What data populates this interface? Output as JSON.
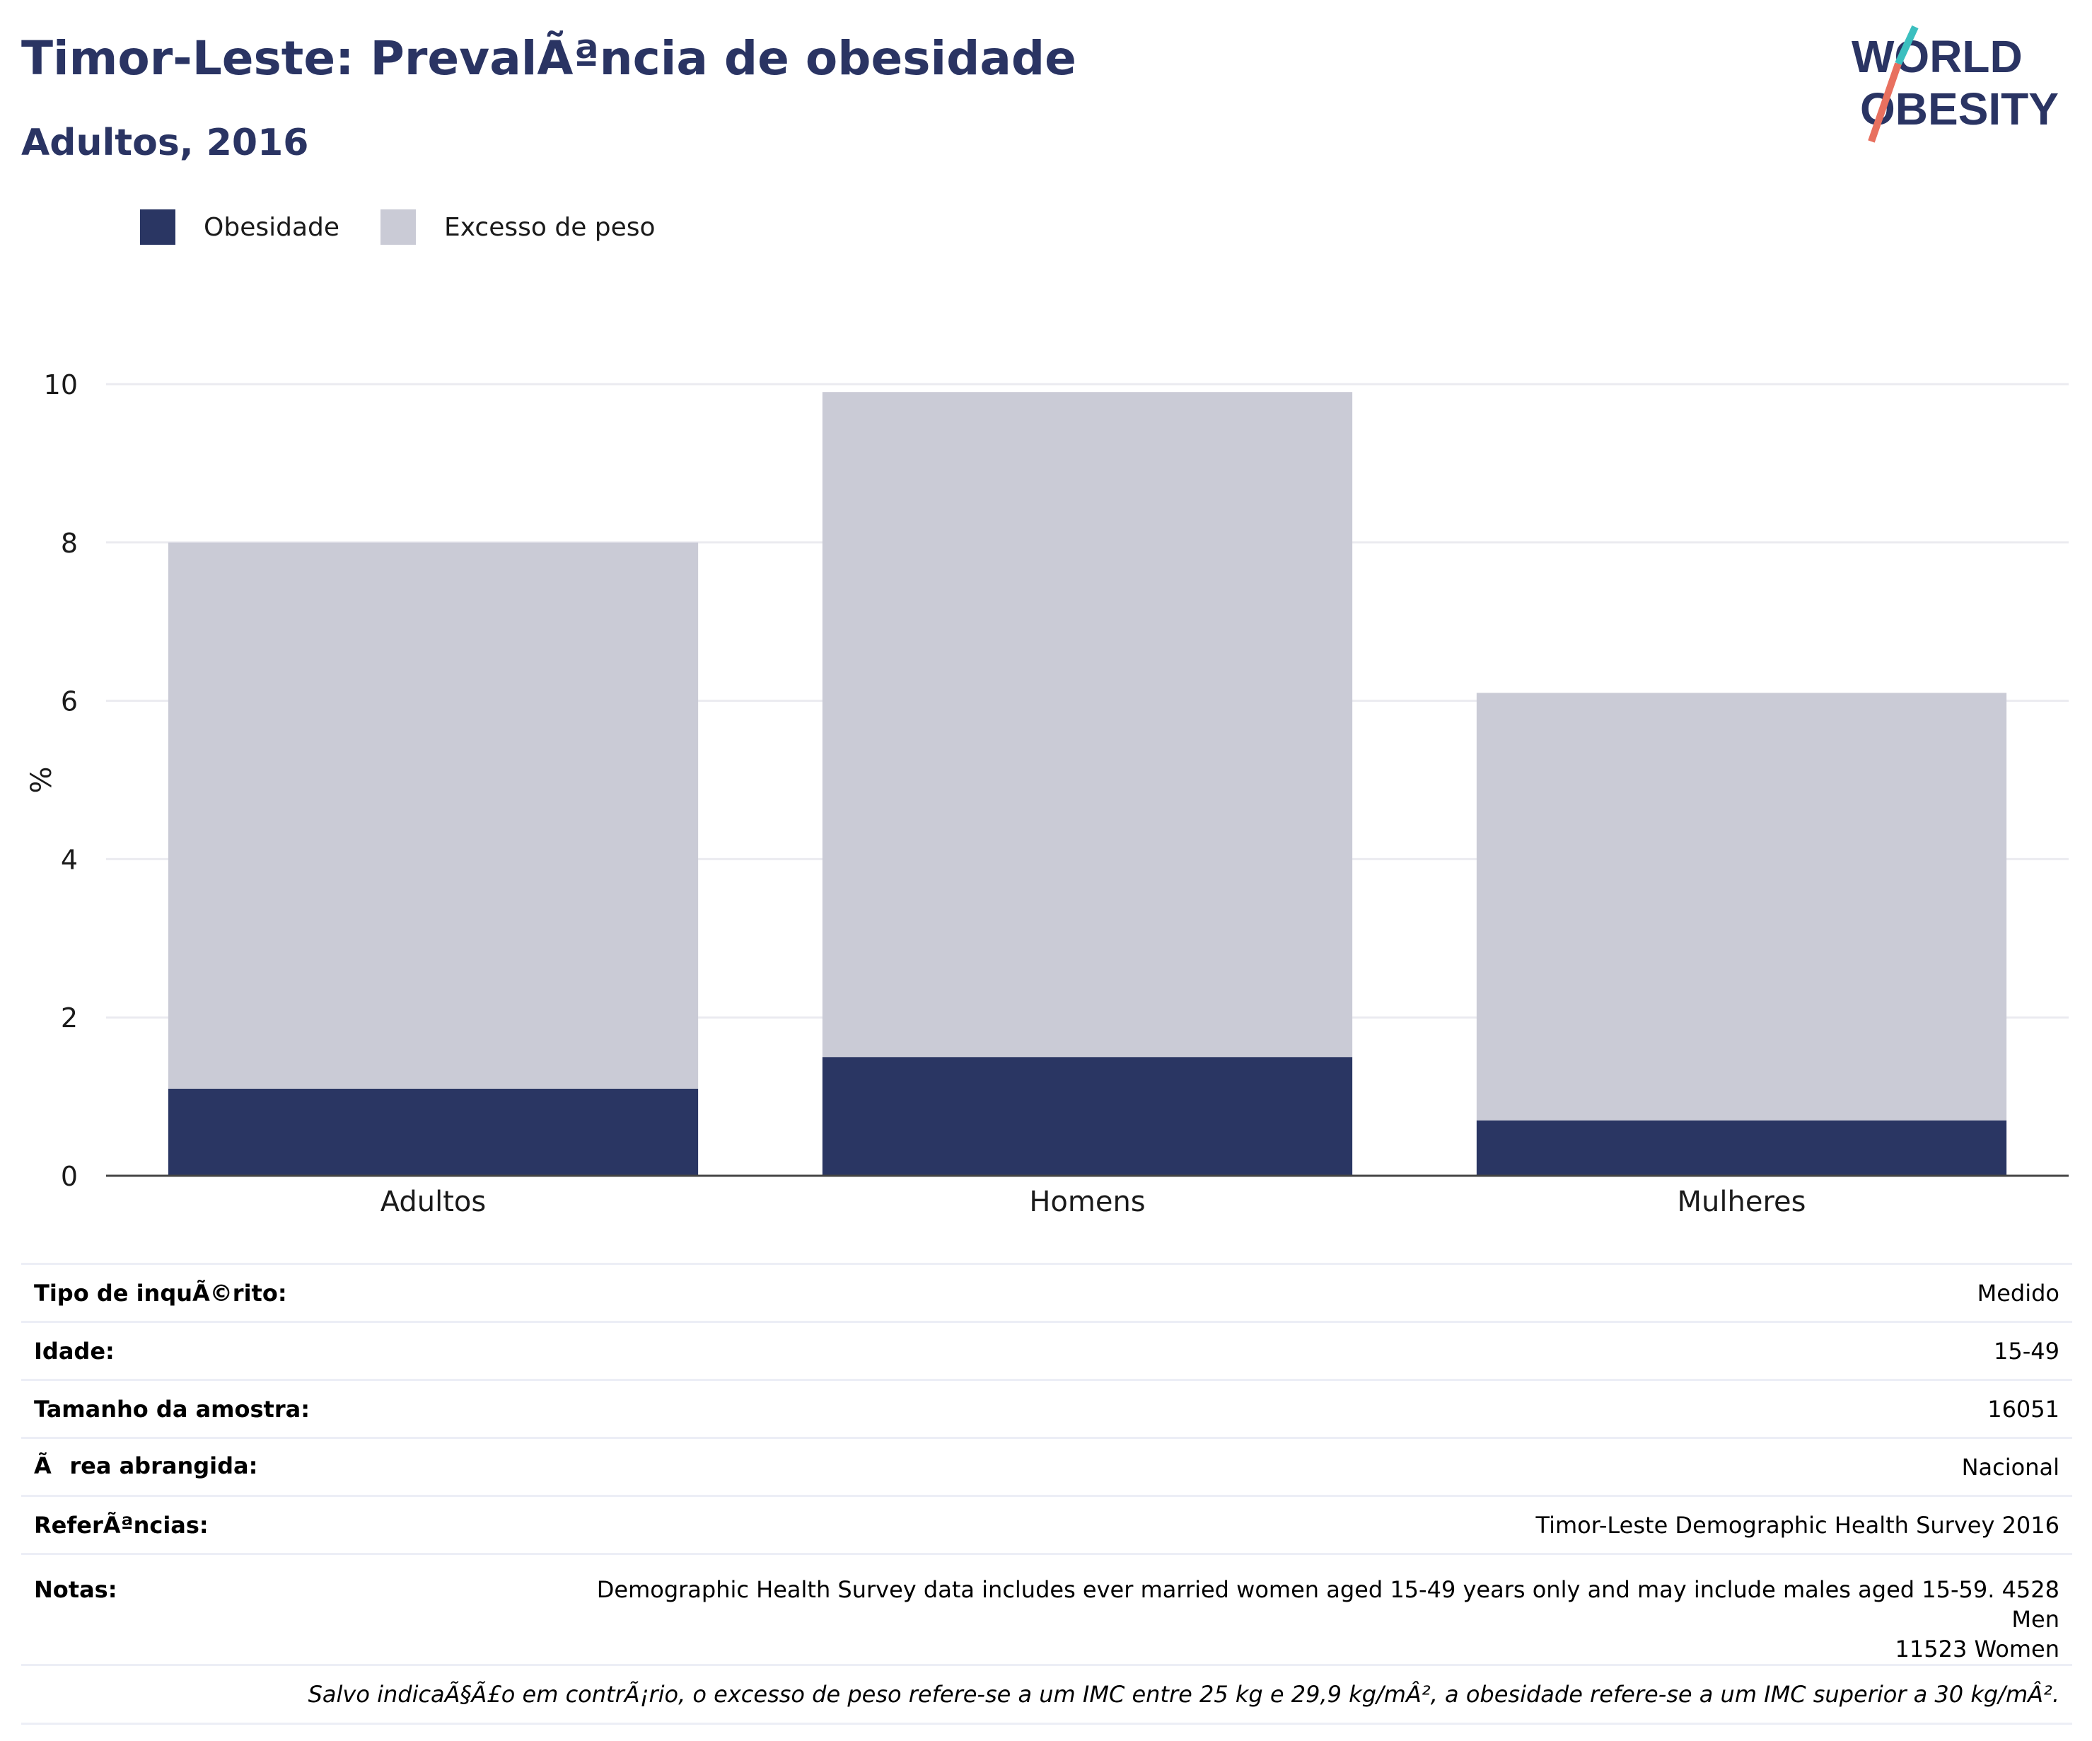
{
  "header": {
    "title": "Timor-Leste: PrevalÃªncia de obesidade",
    "subtitle": "Adultos, 2016",
    "logo_text": [
      "WORLD",
      "OBESITY"
    ]
  },
  "legend": [
    {
      "label": "Obesidade",
      "color": "#2a3663"
    },
    {
      "label": "Excesso de peso",
      "color": "#cacbd6"
    }
  ],
  "chart_data": {
    "type": "bar",
    "stacked": true,
    "categories": [
      "Adultos",
      "Homens",
      "Mulheres"
    ],
    "series": [
      {
        "name": "Obesidade",
        "values": [
          1.1,
          1.5,
          0.7
        ],
        "color": "#2a3663"
      },
      {
        "name": "Excesso de peso",
        "values": [
          6.9,
          8.4,
          5.4
        ],
        "color": "#cacbd6"
      }
    ],
    "ylabel": "%",
    "ylim": [
      0,
      10
    ],
    "yticks": [
      0,
      2,
      4,
      6,
      8,
      10
    ],
    "grid": true,
    "legend_position": "top-left"
  },
  "info_table": [
    {
      "key": "Tipo de inquÃ©rito:",
      "value": "Medido"
    },
    {
      "key": "Idade:",
      "value": "15-49"
    },
    {
      "key": "Tamanho da amostra:",
      "value": "16051"
    },
    {
      "key": "Ãrea abrangida:",
      "value": "Nacional"
    },
    {
      "key": "ReferÃªncias:",
      "value": "Timor-Leste Demographic Health Survey 2016"
    }
  ],
  "notes": {
    "key": "Notas:",
    "line1": "Demographic Health Survey data includes ever married women aged 15-49 years only and may include males aged 15-59. 4528 Men",
    "line2": "11523 Women"
  },
  "footnote": "Salvo indicaÃ§Ã£o em contrÃ¡rio, o excesso de peso refere-se a um IMC entre 25 kg e 29,9 kg/mÂ², a obesidade refere-se a um IMC superior a 30 kg/mÂ²."
}
